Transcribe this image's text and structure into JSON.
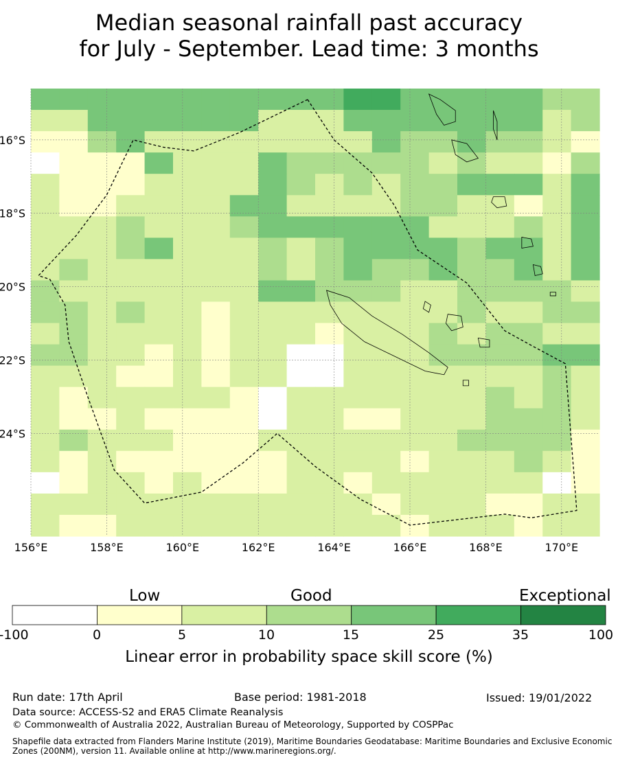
{
  "title": {
    "line1": "Median seasonal rainfall past accuracy",
    "line2": "for July - September. Lead time: 3 months"
  },
  "map": {
    "lon_range": [
      156,
      171
    ],
    "lat_range": [
      -26.8,
      -14.6
    ],
    "lon_ticks": [
      {
        "value": 156,
        "label": "156°E"
      },
      {
        "value": 158,
        "label": "158°E"
      },
      {
        "value": 160,
        "label": "160°E"
      },
      {
        "value": 162,
        "label": "162°E"
      },
      {
        "value": 164,
        "label": "164°E"
      },
      {
        "value": 166,
        "label": "166°E"
      },
      {
        "value": 168,
        "label": "168°E"
      },
      {
        "value": 170,
        "label": "170°E"
      }
    ],
    "lat_ticks": [
      {
        "value": -16,
        "label": "16°S"
      },
      {
        "value": -18,
        "label": "18°S"
      },
      {
        "value": -20,
        "label": "20°S"
      },
      {
        "value": -22,
        "label": "22°S"
      },
      {
        "value": -24,
        "label": "24°S"
      }
    ],
    "grid": true,
    "category_colors": [
      "#ffffff",
      "#ffffcc",
      "#d9f0a3",
      "#addd8e",
      "#78c679",
      "#41ab5d",
      "#238443"
    ],
    "skill_grid_rows_north_to_south": [
      "44444444444554444433",
      "22444444222444444423",
      "11342222222243343321",
      "01114222433333232213",
      "21112222432323344424",
      "21122224422223322124",
      "22232223444444222324",
      "22234222323444434424",
      "23222222323433433424",
      "32222222443332233332",
      "33232212222222232233",
      "23222212221222323322",
      "33221212200222333344",
      "22211212200222222232",
      "21222221022222223232",
      "21121111022112223332",
      "23222111222222233331",
      "21211111122221222321",
      "01221211122122222201",
      "22222222222212221122",
      "21122222222221222122"
    ],
    "eez_boundary": [
      [
        163.3,
        -14.9
      ],
      [
        164.0,
        -16.0
      ],
      [
        165.0,
        -16.9
      ],
      [
        165.6,
        -17.8
      ],
      [
        166.2,
        -19.0
      ],
      [
        167.5,
        -19.9
      ],
      [
        168.5,
        -21.2
      ],
      [
        169.2,
        -21.6
      ],
      [
        170.1,
        -22.1
      ],
      [
        170.4,
        -26.1
      ],
      [
        169.2,
        -26.3
      ],
      [
        168.5,
        -26.2
      ],
      [
        166.0,
        -26.5
      ],
      [
        164.7,
        -25.8
      ],
      [
        163.5,
        -24.9
      ],
      [
        162.5,
        -24.0
      ],
      [
        161.6,
        -24.8
      ],
      [
        160.5,
        -25.6
      ],
      [
        159.0,
        -25.9
      ],
      [
        158.2,
        -25.0
      ],
      [
        157.5,
        -23.0
      ],
      [
        157.0,
        -21.5
      ],
      [
        156.9,
        -20.5
      ],
      [
        156.5,
        -19.8
      ],
      [
        156.2,
        -19.7
      ],
      [
        157.2,
        -18.6
      ],
      [
        158.0,
        -17.5
      ],
      [
        158.7,
        -16.0
      ],
      [
        159.5,
        -16.2
      ],
      [
        160.3,
        -16.3
      ],
      [
        161.5,
        -15.8
      ],
      [
        163.3,
        -14.9
      ]
    ],
    "land": [
      {
        "name": "grande-terre",
        "points": [
          [
            163.8,
            -20.1
          ],
          [
            164.4,
            -20.3
          ],
          [
            165.0,
            -20.8
          ],
          [
            165.8,
            -21.3
          ],
          [
            166.5,
            -21.8
          ],
          [
            167.0,
            -22.2
          ],
          [
            166.9,
            -22.4
          ],
          [
            166.4,
            -22.3
          ],
          [
            165.6,
            -21.9
          ],
          [
            164.8,
            -21.5
          ],
          [
            164.2,
            -21.0
          ],
          [
            163.9,
            -20.5
          ]
        ]
      },
      {
        "name": "ouvea",
        "points": [
          [
            166.4,
            -20.4
          ],
          [
            166.55,
            -20.5
          ],
          [
            166.5,
            -20.7
          ],
          [
            166.35,
            -20.6
          ]
        ]
      },
      {
        "name": "lifou",
        "points": [
          [
            167.0,
            -20.75
          ],
          [
            167.35,
            -20.8
          ],
          [
            167.4,
            -21.1
          ],
          [
            167.1,
            -21.2
          ],
          [
            166.95,
            -21.0
          ]
        ]
      },
      {
        "name": "mare",
        "points": [
          [
            167.8,
            -21.4
          ],
          [
            168.1,
            -21.45
          ],
          [
            168.1,
            -21.65
          ],
          [
            167.85,
            -21.65
          ]
        ]
      },
      {
        "name": "ile-des-pins",
        "points": [
          [
            167.4,
            -22.55
          ],
          [
            167.55,
            -22.55
          ],
          [
            167.55,
            -22.7
          ],
          [
            167.4,
            -22.7
          ]
        ]
      },
      {
        "name": "espiritu-santo",
        "points": [
          [
            166.5,
            -14.75
          ],
          [
            166.8,
            -14.9
          ],
          [
            167.2,
            -15.2
          ],
          [
            167.2,
            -15.5
          ],
          [
            166.9,
            -15.6
          ],
          [
            166.7,
            -15.3
          ]
        ]
      },
      {
        "name": "malakula",
        "points": [
          [
            167.1,
            -16.0
          ],
          [
            167.5,
            -16.1
          ],
          [
            167.8,
            -16.5
          ],
          [
            167.5,
            -16.6
          ],
          [
            167.2,
            -16.4
          ]
        ]
      },
      {
        "name": "maewo-pentecost",
        "points": [
          [
            168.2,
            -15.2
          ],
          [
            168.3,
            -15.5
          ],
          [
            168.3,
            -16.0
          ],
          [
            168.2,
            -15.7
          ]
        ]
      },
      {
        "name": "efate",
        "points": [
          [
            168.2,
            -17.55
          ],
          [
            168.5,
            -17.55
          ],
          [
            168.55,
            -17.8
          ],
          [
            168.3,
            -17.85
          ],
          [
            168.15,
            -17.7
          ]
        ]
      },
      {
        "name": "erromango",
        "points": [
          [
            168.95,
            -18.65
          ],
          [
            169.2,
            -18.7
          ],
          [
            169.25,
            -18.9
          ],
          [
            168.95,
            -18.95
          ]
        ]
      },
      {
        "name": "tanna",
        "points": [
          [
            169.25,
            -19.4
          ],
          [
            169.45,
            -19.45
          ],
          [
            169.5,
            -19.65
          ],
          [
            169.3,
            -19.7
          ]
        ]
      },
      {
        "name": "aneityum",
        "points": [
          [
            169.7,
            -20.15
          ],
          [
            169.85,
            -20.15
          ],
          [
            169.85,
            -20.25
          ],
          [
            169.7,
            -20.25
          ]
        ]
      }
    ]
  },
  "legend": {
    "category_labels": [
      "Low",
      "Good",
      "Exceptional"
    ],
    "tick_labels": [
      "-100",
      "0",
      "5",
      "10",
      "15",
      "25",
      "35",
      "100"
    ],
    "title": "Linear error in probability space skill score (%)"
  },
  "footer": {
    "run_date": "Run date: 17th April",
    "base_period": "Base period: 1981-2018",
    "issued": "Issued: 19/01/2022",
    "data_source": "Data source: ACCESS-S2 and ERA5 Climate Reanalysis",
    "copyright": "© Commonwealth of Australia 2022, Australian Bureau of Meteorology, Supported by COSPPac",
    "shapefile_note": "Shapefile data extracted from Flanders Marine Institute (2019), Maritime Boundaries Geodatabase: Maritime Boundaries and Exclusive Economic Zones (200NM), version 11. Available online at http://www.marineregions.org/."
  }
}
